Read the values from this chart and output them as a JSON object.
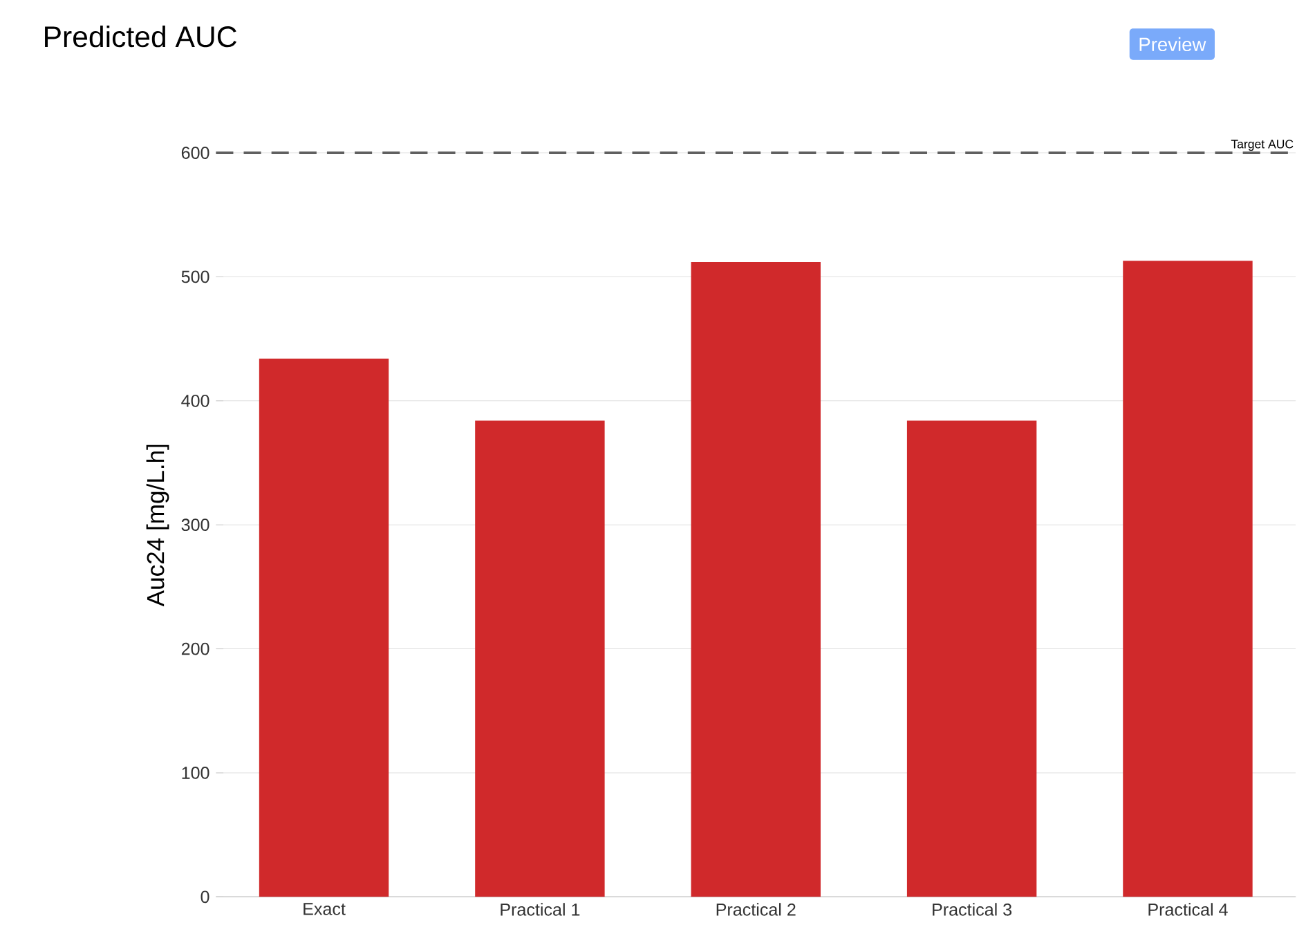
{
  "chart_data": {
    "type": "bar",
    "title": "Predicted AUC",
    "ylabel": "Auc24 [mg/L.h]",
    "categories": [
      "Exact",
      "Practical 1",
      "Practical 2",
      "Practical 3",
      "Practical 4"
    ],
    "values": [
      434,
      384,
      512,
      384,
      513
    ],
    "color": "#d0292b",
    "ylim": [
      0,
      600
    ],
    "yticks": [
      0,
      100,
      200,
      300,
      400,
      500,
      600
    ],
    "grid": "y",
    "ref_lines": [
      {
        "axis": "y",
        "value": 600,
        "label": "Target AUC",
        "color": "#606060",
        "line_style": "dashed"
      }
    ],
    "annotations": [
      "Preview"
    ]
  }
}
